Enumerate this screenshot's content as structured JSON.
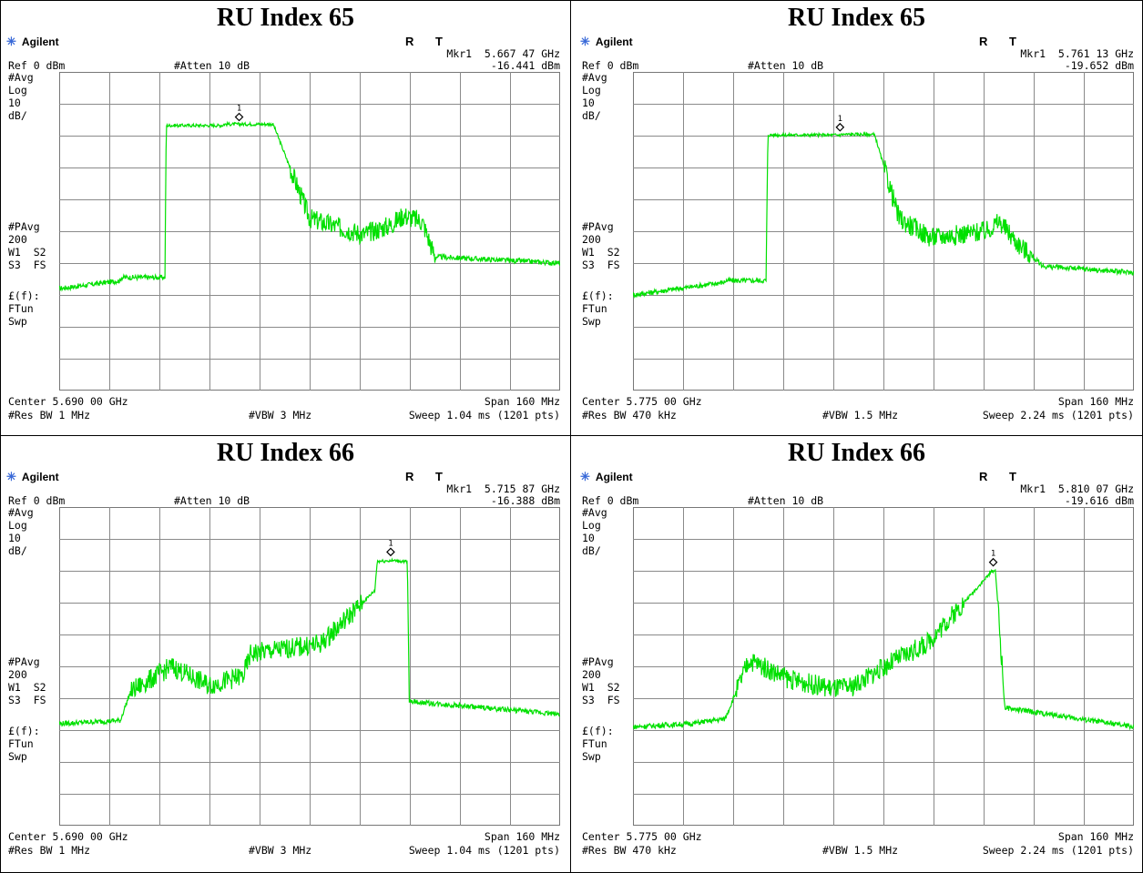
{
  "panels": [
    {
      "title": "RU Index 65",
      "brand": "Agilent",
      "rt": "R T",
      "marker_label": "Mkr1  5.667 47 GHz",
      "marker_value": "-16.441 dBm",
      "ref": "Ref 0 dBm",
      "atten": "#Atten 10 dB",
      "left_labels": [
        "#Avg",
        "Log",
        "10",
        "dB/"
      ],
      "left_labels2": [
        "#PAvg",
        "200",
        "W1  S2",
        "S3  FS"
      ],
      "left_labels3": [
        "£(f):",
        "FTun",
        "Swp"
      ],
      "center": "Center 5.690 00 GHz",
      "span": "Span 160 MHz",
      "res_bw": "#Res BW 1 MHz",
      "vbw": "#VBW 3 MHz",
      "sweep": "Sweep 1.04 ms (1201 pts)",
      "marker_number": "1"
    },
    {
      "title": "RU Index 65",
      "brand": "Agilent",
      "rt": "R T",
      "marker_label": "Mkr1  5.761 13 GHz",
      "marker_value": "-19.652 dBm",
      "ref": "Ref 0 dBm",
      "atten": "#Atten 10 dB",
      "left_labels": [
        "#Avg",
        "Log",
        "10",
        "dB/"
      ],
      "left_labels2": [
        "#PAvg",
        "200",
        "W1  S2",
        "S3  FS"
      ],
      "left_labels3": [
        "£(f):",
        "FTun",
        "Swp"
      ],
      "center": "Center 5.775 00 GHz",
      "span": "Span 160 MHz",
      "res_bw": "#Res BW 470 kHz",
      "vbw": "#VBW 1.5 MHz",
      "sweep": "Sweep 2.24 ms (1201 pts)",
      "marker_number": "1"
    },
    {
      "title": "RU Index 66",
      "brand": "Agilent",
      "rt": "R T",
      "marker_label": "Mkr1  5.715 87 GHz",
      "marker_value": "-16.388 dBm",
      "ref": "Ref 0 dBm",
      "atten": "#Atten 10 dB",
      "left_labels": [
        "#Avg",
        "Log",
        "10",
        "dB/"
      ],
      "left_labels2": [
        "#PAvg",
        "200",
        "W1  S2",
        "S3  FS"
      ],
      "left_labels3": [
        "£(f):",
        "FTun",
        "Swp"
      ],
      "center": "Center 5.690 00 GHz",
      "span": "Span 160 MHz",
      "res_bw": "#Res BW 1 MHz",
      "vbw": "#VBW 3 MHz",
      "sweep": "Sweep 1.04 ms (1201 pts)",
      "marker_number": "1"
    },
    {
      "title": "RU Index 66",
      "brand": "Agilent",
      "rt": "R T",
      "marker_label": "Mkr1  5.810 07 GHz",
      "marker_value": "-19.616 dBm",
      "ref": "Ref 0 dBm",
      "atten": "#Atten 10 dB",
      "left_labels": [
        "#Avg",
        "Log",
        "10",
        "dB/"
      ],
      "left_labels2": [
        "#PAvg",
        "200",
        "W1  S2",
        "S3  FS"
      ],
      "left_labels3": [
        "£(f):",
        "FTun",
        "Swp"
      ],
      "center": "Center 5.775 00 GHz",
      "span": "Span 160 MHz",
      "res_bw": "#Res BW 470 kHz",
      "vbw": "#VBW 1.5 MHz",
      "sweep": "Sweep 2.24 ms (1201 pts)",
      "marker_number": "1"
    }
  ],
  "chart_data": [
    {
      "type": "line",
      "series": [
        {
          "x": [
            5.61,
            5.6296,
            5.6298,
            5.6438,
            5.6442,
            5.6622,
            5.6626,
            5.6782,
            5.6786,
            5.69,
            5.7,
            5.7072,
            5.716,
            5.72,
            5.726,
            5.73,
            5.77
          ],
          "y": [
            -68,
            -65.5,
            -64.5,
            -64.5,
            -16.8,
            -16.8,
            -16.4,
            -16.4,
            -17.0,
            -46.0,
            -49.0,
            -51.0,
            -48.0,
            -45.0,
            -47.0,
            -58.0,
            -60.0
          ],
          "color": "#00e000"
        }
      ],
      "xlim": [
        5.61,
        5.77
      ],
      "ylim": [
        -100,
        0
      ],
      "grid": true,
      "marker": {
        "x": 5.66747,
        "y": -16.441
      }
    },
    {
      "type": "line",
      "series": [
        {
          "x": [
            5.695,
            5.7242,
            5.7246,
            5.7375,
            5.7381,
            5.7611,
            5.7618,
            5.7718,
            5.7724,
            5.78,
            5.79,
            5.808,
            5.812,
            5.818,
            5.826,
            5.855
          ],
          "y": [
            -70,
            -66,
            -65.5,
            -65.5,
            -19.8,
            -19.8,
            -19.6,
            -19.6,
            -20.4,
            -46.0,
            -52.0,
            -50.0,
            -47.0,
            -54.0,
            -61.0,
            -63.0
          ],
          "color": "#00e000"
        }
      ],
      "xlim": [
        5.695,
        5.855
      ],
      "ylim": [
        -100,
        0
      ],
      "grid": true,
      "marker": {
        "x": 5.76113,
        "y": -19.652
      }
    },
    {
      "type": "line",
      "series": [
        {
          "x": [
            5.61,
            5.6296,
            5.6302,
            5.6328,
            5.6458,
            5.6578,
            5.6688,
            5.6712,
            5.6935,
            5.7108,
            5.7116,
            5.7166,
            5.7198,
            5.7212,
            5.7218,
            5.77
          ],
          "y": [
            -68,
            -67,
            -65,
            -58,
            -50,
            -56,
            -53,
            -46,
            -43,
            -26.2,
            -17.0,
            -16.8,
            -17.0,
            -17.2,
            -61.0,
            -65.0
          ],
          "color": "#00e000"
        }
      ],
      "xlim": [
        5.61,
        5.77
      ],
      "ylim": [
        -100,
        0
      ],
      "grid": true,
      "marker": {
        "x": 5.71587,
        "y": -16.388
      }
    },
    {
      "type": "line",
      "series": [
        {
          "x": [
            5.695,
            5.7134,
            5.7204,
            5.7244,
            5.7321,
            5.7448,
            5.7588,
            5.7648,
            5.7788,
            5.7888,
            5.8098,
            5.8108,
            5.8138,
            5.855
          ],
          "y": [
            -69,
            -68,
            -67,
            -66.5,
            -48,
            -54,
            -57,
            -56.5,
            -48,
            -43,
            -20.0,
            -20.0,
            -63,
            -69
          ],
          "color": "#00e000"
        }
      ],
      "xlim": [
        5.695,
        5.855
      ],
      "ylim": [
        -100,
        0
      ],
      "grid": true,
      "marker": {
        "x": 5.81007,
        "y": -19.616
      }
    }
  ]
}
